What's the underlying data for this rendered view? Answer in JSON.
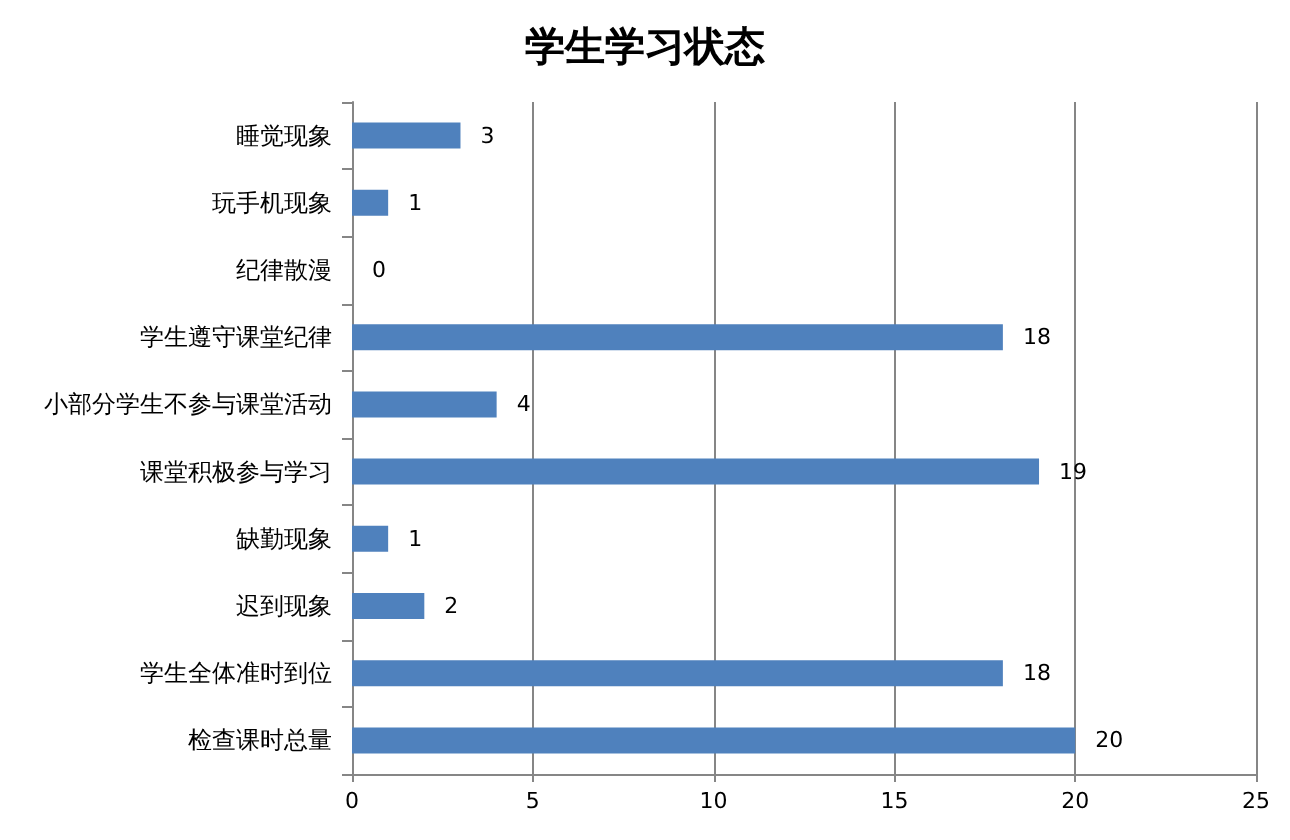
{
  "chart_data": {
    "type": "bar",
    "title": "学生学习状态",
    "orientation": "horizontal",
    "categories": [
      "睡觉现象",
      "玩手机现象",
      "纪律散漫",
      "学生遵守课堂纪律",
      "小部分学生不参与课堂活动",
      "课堂积极参与学习",
      "缺勤现象",
      "迟到现象",
      "学生全体准时到位",
      "检查课时总量"
    ],
    "values": [
      3,
      1,
      0,
      18,
      4,
      19,
      1,
      2,
      18,
      20
    ],
    "color": "#4f81bd",
    "xlim": [
      0,
      25
    ],
    "xticks": [
      0,
      5,
      10,
      15,
      20,
      25
    ],
    "grid": "x",
    "data_labels": true
  }
}
